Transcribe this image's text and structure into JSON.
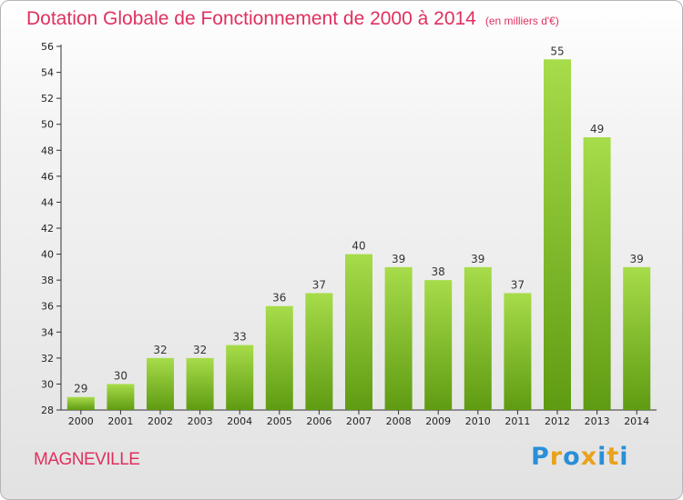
{
  "header": {
    "title": "Dotation Globale de Fonctionnement de 2000 à 2014",
    "subtitle": "(en milliers d'€)"
  },
  "footer": {
    "commune": "MAGNEVILLE",
    "logo": "Proxiti"
  },
  "colors": {
    "title": "#e0305e",
    "bar_light": "#a7dc4a",
    "bar_dark": "#5f9b12",
    "logo_letters": [
      "#2a8fd6",
      "#e9a21b",
      "#2a8fd6",
      "#e9a21b",
      "#2a8fd6",
      "#e9a21b",
      "#2a8fd6"
    ]
  },
  "chart_data": {
    "type": "bar",
    "categories": [
      "2000",
      "2001",
      "2002",
      "2003",
      "2004",
      "2005",
      "2006",
      "2007",
      "2008",
      "2009",
      "2010",
      "2011",
      "2012",
      "2013",
      "2014"
    ],
    "values": [
      29,
      30,
      32,
      32,
      33,
      36,
      37,
      40,
      39,
      38,
      39,
      37,
      55,
      49,
      39
    ],
    "ylim": [
      28,
      56
    ],
    "yticks": [
      28,
      30,
      32,
      34,
      36,
      38,
      40,
      42,
      44,
      46,
      48,
      50,
      52,
      54,
      56
    ],
    "grid": false,
    "data_labels": true
  }
}
